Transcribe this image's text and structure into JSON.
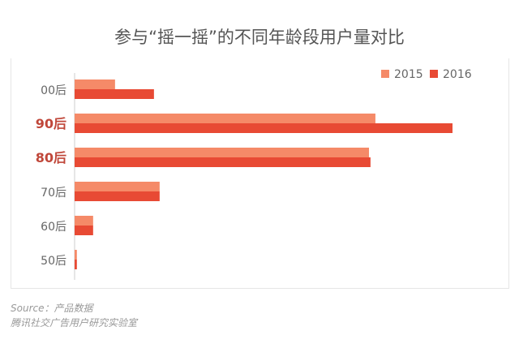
{
  "chart_data": {
    "type": "bar",
    "orientation": "horizontal",
    "title": "参与“摇一摇”的不同年龄段用户量对比",
    "categories": [
      "00后",
      "90后",
      "80后",
      "70后",
      "60后",
      "50后"
    ],
    "highlighted_categories": [
      "90后",
      "80后"
    ],
    "series": [
      {
        "name": "2015",
        "color": "#f58a68",
        "values": [
          10.7,
          79.6,
          77.9,
          22.5,
          4.9,
          0.6
        ]
      },
      {
        "name": "2016",
        "color": "#e84a34",
        "values": [
          21,
          100,
          78.3,
          22.5,
          4.9,
          0.6
        ]
      }
    ],
    "xlim": [
      0,
      100
    ],
    "grid": false,
    "legend": "top-right",
    "label_color": "#666666",
    "highlight_color": "#c0473a"
  },
  "source": {
    "line1": "Source：产品数据",
    "line2": "腾讯社交广告用户研究实验室"
  }
}
